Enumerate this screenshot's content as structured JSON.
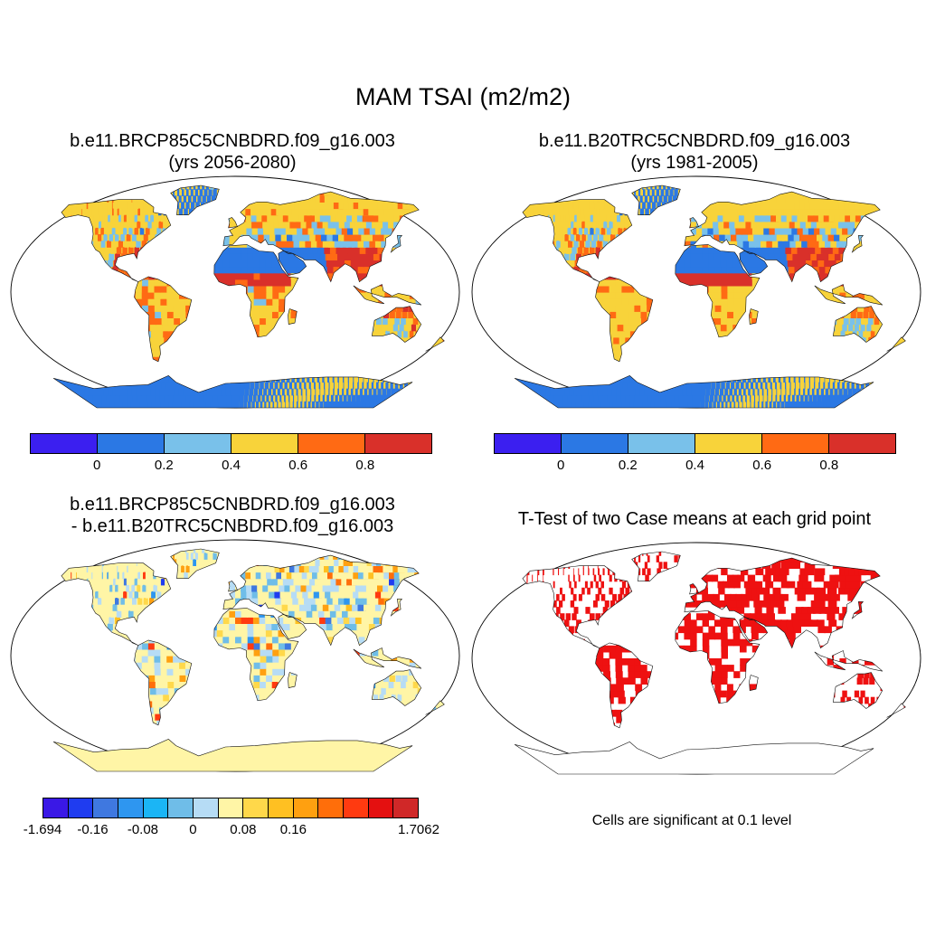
{
  "figure": {
    "title": "MAM TSAI (m2/m2)"
  },
  "panels": [
    {
      "id": "top-left",
      "title_lines": [
        "b.e11.BRCP85C5CNBDRD.f09_g16.003",
        "(yrs 2056-2080)"
      ],
      "colorbar": {
        "colors": [
          "#3b1ff0",
          "#2b78e4",
          "#79c1ea",
          "#f8d33a",
          "#ff6a14",
          "#d9302a"
        ],
        "labels": [
          "0",
          "0.2",
          "0.4",
          "0.6",
          "0.8"
        ]
      }
    },
    {
      "id": "top-right",
      "title_lines": [
        "b.e11.B20TRC5CNBDRD.f09_g16.003",
        "(yrs 1981-2005)"
      ],
      "colorbar": {
        "colors": [
          "#3b1ff0",
          "#2b78e4",
          "#79c1ea",
          "#f8d33a",
          "#ff6a14",
          "#d9302a"
        ],
        "labels": [
          "0",
          "0.2",
          "0.4",
          "0.6",
          "0.8"
        ]
      }
    },
    {
      "id": "bottom-left",
      "title_lines": [
        "b.e11.BRCP85C5CNBDRD.f09_g16.003",
        "- b.e11.B20TRC5CNBDRD.f09_g16.003"
      ],
      "colorbar": {
        "colors": [
          "#3a18e6",
          "#1f3cf0",
          "#3f78e0",
          "#2e96f0",
          "#1bb5f5",
          "#6fbde8",
          "#b6dcf5",
          "#fff5a6",
          "#ffd84a",
          "#ffc022",
          "#ffa010",
          "#ff6e0a",
          "#ff3a10",
          "#e41010",
          "#d02828"
        ],
        "labels": [
          "-1.694",
          "-0.16",
          "-0.08",
          "0",
          "0.08",
          "0.16",
          "1.7062"
        ]
      }
    },
    {
      "id": "bottom-right",
      "title_lines": [
        "T-Test of two Case means at each grid point"
      ],
      "note": "Cells are significant at 0.1 level",
      "significant_color": "#ee1111"
    }
  ]
}
